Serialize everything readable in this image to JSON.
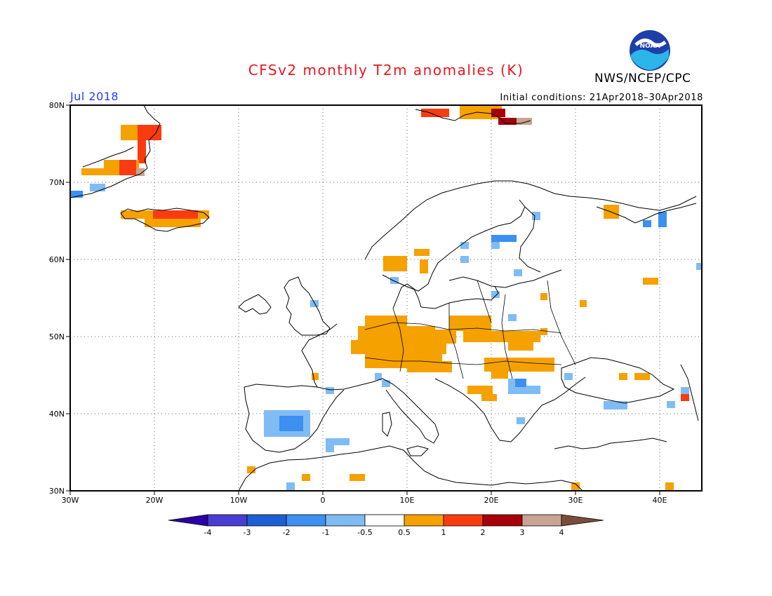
{
  "header": {
    "title": "CFSv2 monthly T2m anomalies (K)",
    "agency": "NWS/NCEP/CPC",
    "logo_text": "NOAA",
    "valid_month": "Jul 2018",
    "initial_conditions": "Initial conditions: 21Apr2018–30Apr2018"
  },
  "map": {
    "lon_range": [
      -30,
      45
    ],
    "lat_range": [
      30,
      80
    ],
    "lat_ticks": [
      "30N",
      "40N",
      "50N",
      "60N",
      "70N",
      "80N"
    ],
    "lon_ticks": [
      "30W",
      "20W",
      "10W",
      "0",
      "10E",
      "20E",
      "30E",
      "40E"
    ]
  },
  "colorbar": {
    "labels": [
      "-4",
      "-3",
      "-2",
      "-1",
      "-0.5",
      "0.5",
      "1",
      "2",
      "3",
      "4"
    ],
    "colors": [
      "#2b00a8",
      "#4a3dd1",
      "#1f5fd6",
      "#3d8ff0",
      "#7fbcf3",
      "#ffffff",
      "#f5a100",
      "#f83c10",
      "#a8000a",
      "#c9a393",
      "#7a4c3c"
    ]
  },
  "anomaly_colors": {
    "warm05": "#f5a100",
    "warm1": "#f83c10",
    "warm2": "#a8000a",
    "warm3": "#c9a393",
    "cool05": "#7fbcf3",
    "cool1": "#3d8ff0"
  }
}
